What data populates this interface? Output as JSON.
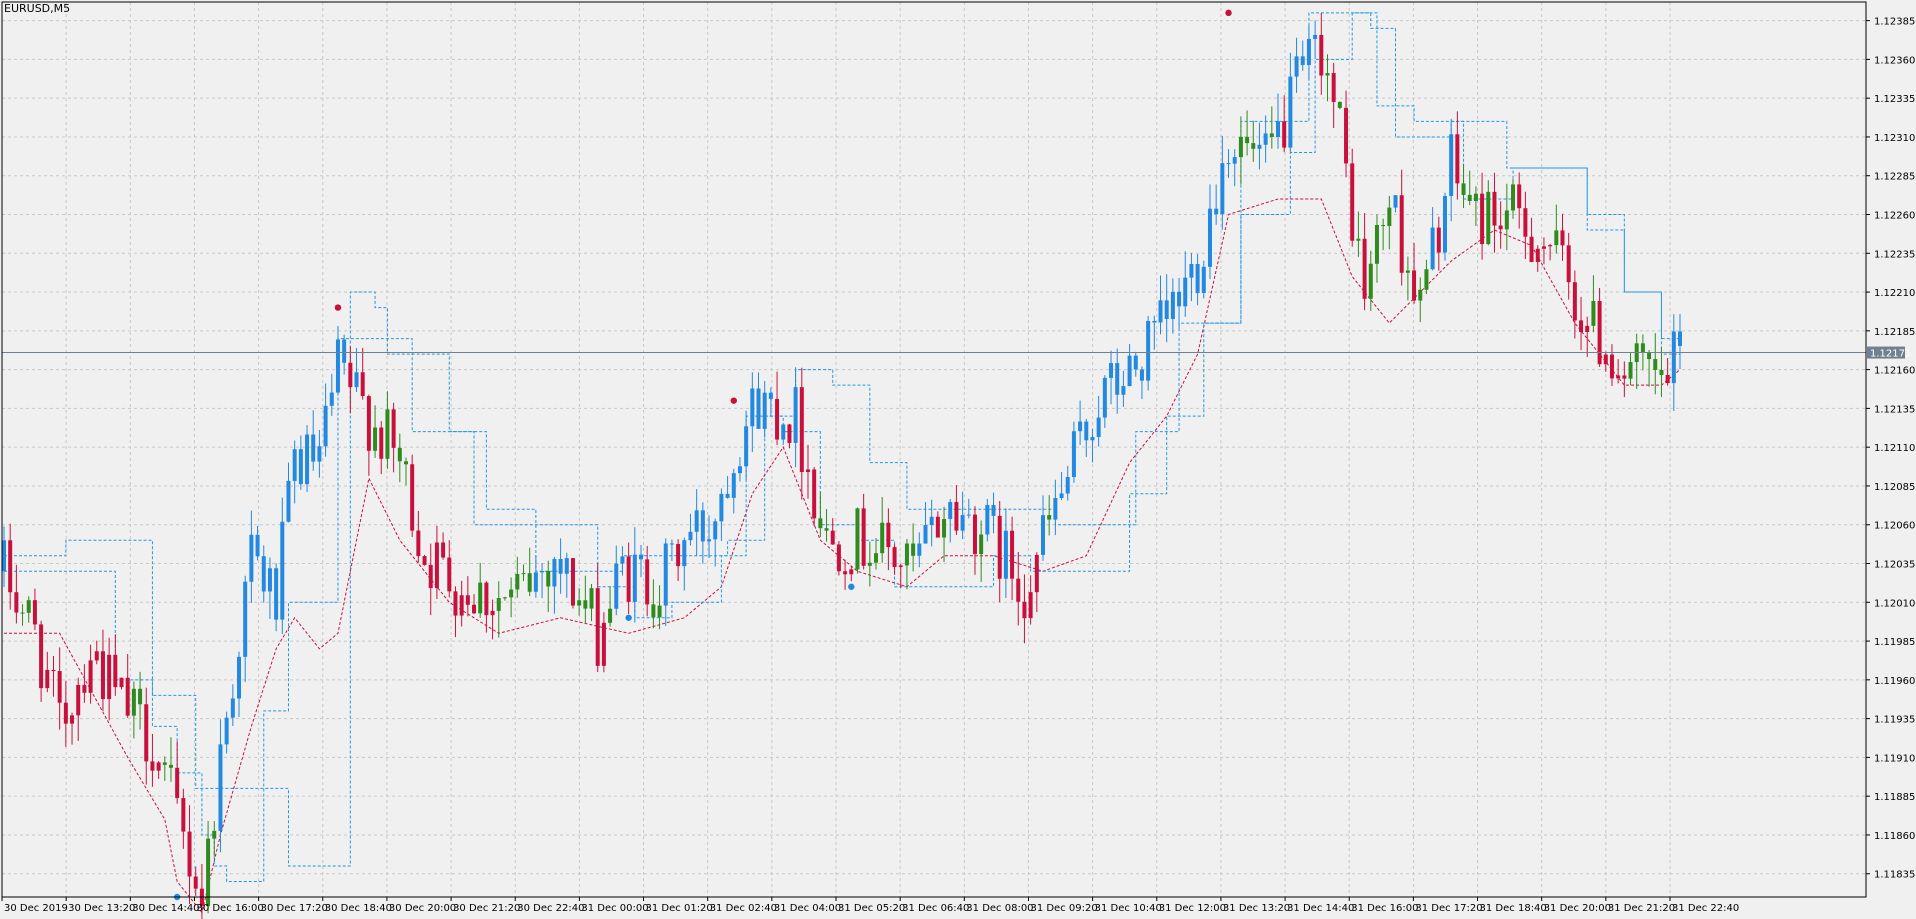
{
  "chart_window": {
    "symbol_timeframe": "EURUSD,M5",
    "current_price_label": "1.12171"
  },
  "colors": {
    "background": "#f0f0f0",
    "grid": "#c8c8c8",
    "bull_candle": "#2288e0",
    "bear_candle": "#c8103c",
    "neutral_candle": "#2e8b1e",
    "upper_band": "#2298e0",
    "lower_band": "#c8103c",
    "price_line": "#708090",
    "price_label_bg": "#708090",
    "axis_text": "#000000"
  },
  "chart_data": {
    "type": "candlestick",
    "symbol": "EURUSD",
    "timeframe": "M5",
    "ylim": [
      1.1182,
      1.12397
    ],
    "y_ticks": [
      "1.12385",
      "1.12360",
      "1.12335",
      "1.12310",
      "1.12285",
      "1.12260",
      "1.12235",
      "1.12210",
      "1.12185",
      "1.12160",
      "1.12135",
      "1.12110",
      "1.12085",
      "1.12060",
      "1.12035",
      "1.12010",
      "1.11985",
      "1.11960",
      "1.11935",
      "1.11910",
      "1.11885",
      "1.11860",
      "1.11835"
    ],
    "x_ticks": [
      "30 Dec 2019",
      "30 Dec 13:20",
      "30 Dec 14:40",
      "30 Dec 16:00",
      "30 Dec 17:20",
      "30 Dec 18:40",
      "30 Dec 20:00",
      "30 Dec 21:20",
      "30 Dec 22:40",
      "31 Dec 00:00",
      "31 Dec 01:20",
      "31 Dec 02:40",
      "31 Dec 04:00",
      "31 Dec 05:20",
      "31 Dec 06:40",
      "31 Dec 08:00",
      "31 Dec 09:20",
      "31 Dec 10:40",
      "31 Dec 12:00",
      "31 Dec 13:20",
      "31 Dec 14:40",
      "31 Dec 16:00",
      "31 Dec 17:20",
      "31 Dec 18:40",
      "31 Dec 20:00",
      "31 Dec 21:20",
      "31 Dec 22:40"
    ],
    "current_price": 1.12171,
    "bar_count": 272,
    "close_anchors": [
      [
        0,
        1.1203
      ],
      [
        5,
        1.1199
      ],
      [
        9,
        1.1193
      ],
      [
        14,
        1.1198
      ],
      [
        18,
        1.1195
      ],
      [
        24,
        1.1192
      ],
      [
        28,
        1.1187
      ],
      [
        32,
        1.1182
      ],
      [
        35,
        1.1191
      ],
      [
        40,
        1.1204
      ],
      [
        44,
        1.1201
      ],
      [
        47,
        1.121
      ],
      [
        51,
        1.121
      ],
      [
        54,
        1.1216
      ],
      [
        59,
        1.1213
      ],
      [
        64,
        1.121
      ],
      [
        68,
        1.1204
      ],
      [
        74,
        1.1202
      ],
      [
        82,
        1.1201
      ],
      [
        89,
        1.1204
      ],
      [
        96,
        1.1199
      ],
      [
        100,
        1.1203
      ],
      [
        106,
        1.1202
      ],
      [
        110,
        1.1205
      ],
      [
        114,
        1.1206
      ],
      [
        119,
        1.1212
      ],
      [
        122,
        1.1214
      ],
      [
        128,
        1.1213
      ],
      [
        133,
        1.1205
      ],
      [
        140,
        1.1205
      ],
      [
        147,
        1.1203
      ],
      [
        152,
        1.1207
      ],
      [
        158,
        1.1206
      ],
      [
        165,
        1.1202
      ],
      [
        171,
        1.1208
      ],
      [
        177,
        1.1214
      ],
      [
        183,
        1.1216
      ],
      [
        188,
        1.1219
      ],
      [
        193,
        1.1223
      ],
      [
        198,
        1.1231
      ],
      [
        204,
        1.1229
      ],
      [
        209,
        1.1234
      ],
      [
        213,
        1.1237
      ],
      [
        216,
        1.1231
      ],
      [
        220,
        1.1221
      ],
      [
        224,
        1.1227
      ],
      [
        229,
        1.122
      ],
      [
        234,
        1.1229
      ],
      [
        238,
        1.1226
      ],
      [
        243,
        1.1226
      ],
      [
        250,
        1.1224
      ],
      [
        256,
        1.1219
      ],
      [
        262,
        1.1216
      ],
      [
        268,
        1.1215
      ],
      [
        271,
        1.1217
      ]
    ],
    "upper_band_steps": [
      [
        0,
        1.1204
      ],
      [
        9,
        1.1204
      ],
      [
        10,
        1.1205
      ],
      [
        18,
        1.1205
      ],
      [
        24,
        1.1195
      ],
      [
        30,
        1.1195
      ],
      [
        31,
        1.1189
      ],
      [
        46,
        1.1184
      ],
      [
        53,
        1.1184
      ],
      [
        56,
        1.1221
      ],
      [
        60,
        1.122
      ],
      [
        62,
        1.1217
      ],
      [
        68,
        1.1217
      ],
      [
        72,
        1.1212
      ],
      [
        78,
        1.1207
      ],
      [
        86,
        1.1203
      ],
      [
        100,
        1.1204
      ],
      [
        117,
        1.1205
      ],
      [
        123,
        1.1213
      ],
      [
        128,
        1.1216
      ],
      [
        134,
        1.1215
      ],
      [
        140,
        1.121
      ],
      [
        146,
        1.1207
      ],
      [
        156,
        1.1207
      ],
      [
        165,
        1.1207
      ],
      [
        170,
        1.1206
      ],
      [
        183,
        1.1212
      ],
      [
        190,
        1.1219
      ],
      [
        200,
        1.1232
      ],
      [
        211,
        1.1239
      ],
      [
        221,
        1.1238
      ],
      [
        225,
        1.1231
      ],
      [
        234,
        1.1232
      ],
      [
        243,
        1.1229
      ],
      [
        251,
        1.1229
      ],
      [
        256,
        1.1226
      ],
      [
        262,
        1.1221
      ],
      [
        268,
        1.1217
      ],
      [
        271,
        1.1218
      ]
    ],
    "lower_band_steps": [
      [
        0,
        1.1199
      ],
      [
        9,
        1.1199
      ],
      [
        20,
        1.1191
      ],
      [
        26,
        1.1187
      ],
      [
        28,
        1.1183
      ],
      [
        32,
        1.1181
      ],
      [
        35,
        1.1186
      ],
      [
        40,
        1.1193
      ],
      [
        44,
        1.1198
      ],
      [
        47,
        1.12
      ],
      [
        51,
        1.1198
      ],
      [
        54,
        1.1199
      ],
      [
        59,
        1.1209
      ],
      [
        64,
        1.1205
      ],
      [
        72,
        1.1201
      ],
      [
        80,
        1.1199
      ],
      [
        90,
        1.12
      ],
      [
        101,
        1.1199
      ],
      [
        110,
        1.12
      ],
      [
        116,
        1.1202
      ],
      [
        121,
        1.1208
      ],
      [
        126,
        1.1211
      ],
      [
        132,
        1.1205
      ],
      [
        138,
        1.1203
      ],
      [
        146,
        1.1202
      ],
      [
        152,
        1.1204
      ],
      [
        160,
        1.1204
      ],
      [
        168,
        1.1203
      ],
      [
        175,
        1.1204
      ],
      [
        182,
        1.121
      ],
      [
        188,
        1.1213
      ],
      [
        193,
        1.1217
      ],
      [
        198,
        1.1226
      ],
      [
        206,
        1.1227
      ],
      [
        213,
        1.1227
      ],
      [
        218,
        1.1222
      ],
      [
        224,
        1.1219
      ],
      [
        234,
        1.1223
      ],
      [
        241,
        1.1225
      ],
      [
        247,
        1.1224
      ],
      [
        254,
        1.1219
      ],
      [
        262,
        1.1215
      ],
      [
        268,
        1.1215
      ],
      [
        271,
        1.1216
      ]
    ],
    "outer_band_steps": [
      [
        0,
        1.1203
      ],
      [
        10,
        1.1203
      ],
      [
        18,
        1.1196
      ],
      [
        24,
        1.1193
      ],
      [
        28,
        1.119
      ],
      [
        32,
        1.1186
      ],
      [
        34,
        1.1184
      ],
      [
        36,
        1.1183
      ],
      [
        42,
        1.1194
      ],
      [
        46,
        1.1201
      ],
      [
        52,
        1.1201
      ],
      [
        54,
        1.1218
      ],
      [
        58,
        1.1218
      ],
      [
        66,
        1.1212
      ],
      [
        76,
        1.1206
      ],
      [
        96,
        1.1202
      ],
      [
        102,
        1.12
      ],
      [
        108,
        1.1201
      ],
      [
        116,
        1.1204
      ],
      [
        120,
        1.1213
      ],
      [
        126,
        1.1212
      ],
      [
        132,
        1.1206
      ],
      [
        138,
        1.1205
      ],
      [
        144,
        1.1202
      ],
      [
        150,
        1.1202
      ],
      [
        160,
        1.1204
      ],
      [
        166,
        1.1203
      ],
      [
        172,
        1.1203
      ],
      [
        182,
        1.1208
      ],
      [
        188,
        1.1213
      ],
      [
        194,
        1.1219
      ],
      [
        200,
        1.1226
      ],
      [
        208,
        1.123
      ],
      [
        212,
        1.1236
      ],
      [
        218,
        1.1239
      ],
      [
        222,
        1.1233
      ],
      [
        228,
        1.1232
      ],
      [
        236,
        1.1227
      ],
      [
        244,
        1.1229
      ],
      [
        252,
        1.1229
      ],
      [
        256,
        1.1225
      ],
      [
        262,
        1.1221
      ],
      [
        268,
        1.1218
      ],
      [
        271,
        1.1218
      ]
    ],
    "signal_dots": [
      {
        "bar": 28,
        "price": 1.1182,
        "kind": "low"
      },
      {
        "bar": 54,
        "price": 1.122,
        "kind": "high"
      },
      {
        "bar": 101,
        "price": 1.12,
        "kind": "low"
      },
      {
        "bar": 118,
        "price": 1.1214,
        "kind": "high"
      },
      {
        "bar": 137,
        "price": 1.1202,
        "kind": "low"
      },
      {
        "bar": 198,
        "price": 1.1239,
        "kind": "high"
      }
    ]
  }
}
